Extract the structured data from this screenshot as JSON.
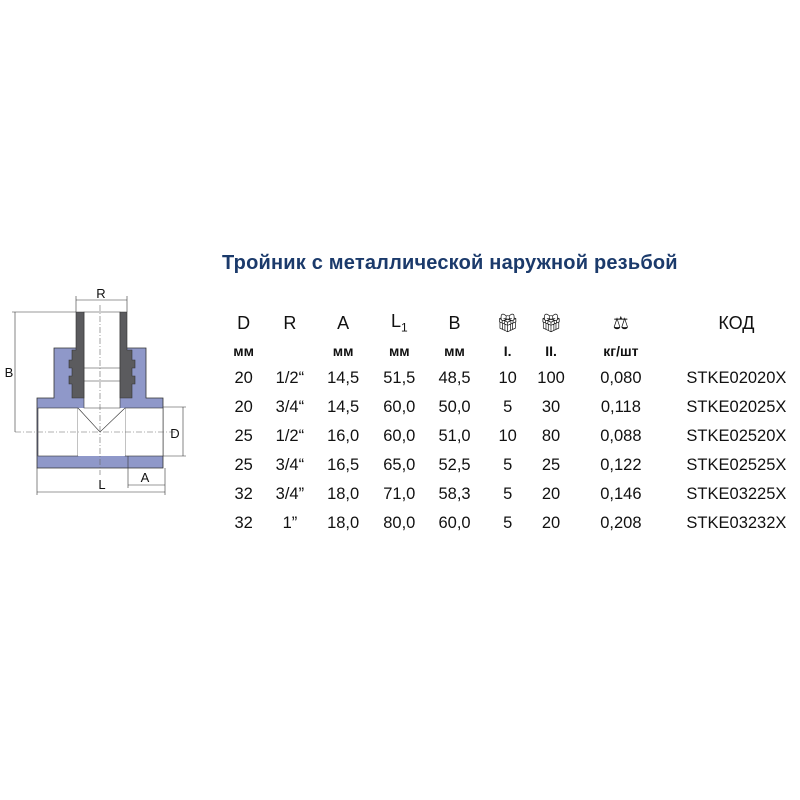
{
  "title": "Тройник с металлической наружной резьбой",
  "diagram_labels": {
    "R": "R",
    "B": "B",
    "D": "D",
    "L": "L",
    "A": "A"
  },
  "colors": {
    "title": "#1b3a6b",
    "body": "#8f98c9",
    "thread": "#5b5b5e"
  },
  "table": {
    "headers": [
      "D",
      "R",
      "A",
      "L1",
      "B",
      "package-icon",
      "package-icon",
      "scale-icon",
      "КОД"
    ],
    "header_L": "L",
    "header_L_sub": "1",
    "units": [
      "мм",
      "",
      "мм",
      "мм",
      "мм",
      "I.",
      "II.",
      "кг/шт",
      ""
    ],
    "rows": [
      [
        "20",
        "1/2“",
        "14,5",
        "51,5",
        "48,5",
        "10",
        "100",
        "0,080",
        "STKE02020X"
      ],
      [
        "20",
        "3/4“",
        "14,5",
        "60,0",
        "50,0",
        "5",
        "30",
        "0,118",
        "STKE02025X"
      ],
      [
        "25",
        "1/2“",
        "16,0",
        "60,0",
        "51,0",
        "10",
        "80",
        "0,088",
        "STKE02520X"
      ],
      [
        "25",
        "3/4“",
        "16,5",
        "65,0",
        "52,5",
        "5",
        "25",
        "0,122",
        "STKE02525X"
      ],
      [
        "32",
        "3/4”",
        "18,0",
        "71,0",
        "58,3",
        "5",
        "20",
        "0,146",
        "STKE03225X"
      ],
      [
        "32",
        "1”",
        "18,0",
        "80,0",
        "60,0",
        "5",
        "20",
        "0,208",
        "STKE03232X"
      ]
    ]
  }
}
